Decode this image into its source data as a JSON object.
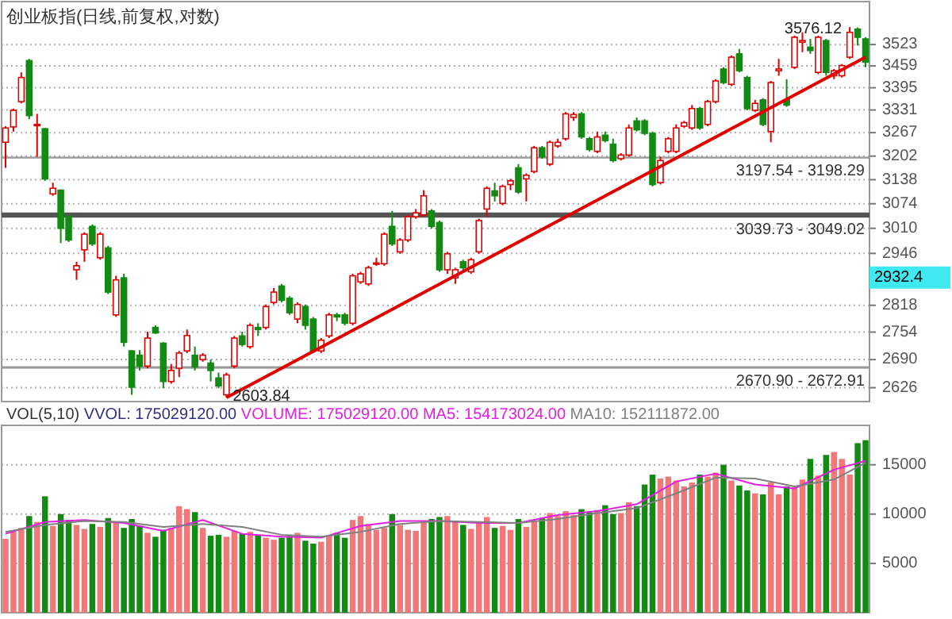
{
  "chart_data": [
    {
      "type": "candlestick",
      "title": "创业板指(日线,前复权,对数)",
      "categories": [
        null,
        null,
        null,
        null,
        null,
        null,
        null,
        null,
        null,
        null,
        null,
        null,
        null,
        null,
        null,
        null,
        null,
        null,
        null,
        null,
        null,
        null,
        null,
        null,
        null,
        null,
        null,
        null,
        null,
        null,
        null,
        null,
        null,
        null,
        null,
        null,
        null,
        null,
        null,
        null,
        null,
        null,
        null,
        null,
        null,
        null,
        null,
        null,
        null,
        null,
        null,
        null,
        null,
        null,
        null,
        null,
        null,
        null,
        null,
        null,
        null,
        null,
        null,
        null,
        null,
        null,
        null,
        null,
        null,
        null,
        null,
        null,
        null,
        null,
        null,
        null,
        null,
        null,
        null,
        null,
        null,
        null,
        null,
        null,
        null,
        null,
        null,
        null,
        null,
        null,
        null,
        null,
        null,
        null,
        null,
        null,
        null,
        null,
        null,
        null,
        null,
        null,
        null,
        null,
        null,
        null,
        null,
        null,
        null,
        null
      ],
      "ohlc": [
        [
          3240,
          3285,
          3170,
          3280
        ],
        [
          3283,
          3335,
          3270,
          3330
        ],
        [
          3355,
          3440,
          3350,
          3425
        ],
        [
          3475,
          3480,
          3305,
          3315
        ],
        [
          3290,
          3320,
          3200,
          3290
        ],
        [
          3278,
          3280,
          3135,
          3140
        ],
        [
          3100,
          3130,
          3095,
          3115
        ],
        [
          3110,
          3112,
          2972,
          3010
        ],
        [
          3040,
          3045,
          2975,
          2980
        ],
        [
          2905,
          2925,
          2880,
          2915
        ],
        [
          2955,
          3000,
          2925,
          2995
        ],
        [
          3015,
          3020,
          2965,
          2970
        ],
        [
          2935,
          3000,
          2930,
          2995
        ],
        [
          2960,
          2965,
          2845,
          2850
        ],
        [
          2795,
          2890,
          2790,
          2880
        ],
        [
          2885,
          2895,
          2720,
          2730
        ],
        [
          2710,
          2712,
          2610,
          2627
        ],
        [
          2700,
          2712,
          2665,
          2675
        ],
        [
          2675,
          2755,
          2670,
          2740
        ],
        [
          2765,
          2770,
          2750,
          2752
        ],
        [
          2728,
          2730,
          2625,
          2640
        ],
        [
          2640,
          2680,
          2635,
          2665
        ],
        [
          2670,
          2710,
          2650,
          2705
        ],
        [
          2710,
          2760,
          2705,
          2746
        ],
        [
          2700,
          2720,
          2665,
          2673
        ],
        [
          2690,
          2705,
          2685,
          2700
        ],
        [
          2682,
          2690,
          2640,
          2665
        ],
        [
          2648,
          2660,
          2625,
          2630
        ],
        [
          2610,
          2660,
          2603.84,
          2655
        ],
        [
          2675,
          2745,
          2670,
          2740
        ],
        [
          2745,
          2755,
          2720,
          2725
        ],
        [
          2720,
          2775,
          2715,
          2770
        ],
        [
          2765,
          2775,
          2745,
          2760
        ],
        [
          2765,
          2820,
          2760,
          2815
        ],
        [
          2825,
          2860,
          2820,
          2850
        ],
        [
          2865,
          2870,
          2825,
          2830
        ],
        [
          2835,
          2840,
          2795,
          2800
        ],
        [
          2785,
          2825,
          2775,
          2820
        ],
        [
          2815,
          2820,
          2760,
          2770
        ],
        [
          2785,
          2790,
          2705,
          2710
        ],
        [
          2710,
          2740,
          2705,
          2735
        ],
        [
          2745,
          2800,
          2740,
          2795
        ],
        [
          2795,
          2800,
          2780,
          2790
        ],
        [
          2795,
          2800,
          2770,
          2775
        ],
        [
          2775,
          2895,
          2770,
          2890
        ],
        [
          2875,
          2900,
          2870,
          2895
        ],
        [
          2870,
          2915,
          2865,
          2910
        ],
        [
          2920,
          2935,
          2915,
          2922
        ],
        [
          2920,
          3000,
          2915,
          2995
        ],
        [
          3015,
          3055,
          2965,
          2970
        ],
        [
          2950,
          2985,
          2945,
          2980
        ],
        [
          2980,
          3045,
          2975,
          3040
        ],
        [
          3040,
          3060,
          3035,
          3050
        ],
        [
          3045,
          3110,
          3040,
          3095
        ],
        [
          3055,
          3060,
          3010,
          3015
        ],
        [
          3025,
          3030,
          2900,
          2905
        ],
        [
          2905,
          2950,
          2895,
          2945
        ],
        [
          2885,
          2910,
          2870,
          2905
        ],
        [
          2925,
          2930,
          2900,
          2910
        ],
        [
          2900,
          2935,
          2895,
          2930
        ],
        [
          2950,
          3035,
          2945,
          3030
        ],
        [
          3060,
          3120,
          3040,
          3115
        ],
        [
          3108,
          3130,
          3080,
          3095
        ],
        [
          3075,
          3125,
          3070,
          3120
        ],
        [
          3125,
          3140,
          3110,
          3135
        ],
        [
          3170,
          3180,
          3100,
          3105
        ],
        [
          3140,
          3155,
          3080,
          3150
        ],
        [
          3160,
          3230,
          3155,
          3225
        ],
        [
          3225,
          3230,
          3195,
          3200
        ],
        [
          3180,
          3245,
          3175,
          3240
        ],
        [
          3230,
          3250,
          3225,
          3240
        ],
        [
          3250,
          3325,
          3245,
          3320
        ],
        [
          3310,
          3325,
          3300,
          3318
        ],
        [
          3320,
          3325,
          3250,
          3255
        ],
        [
          3250,
          3255,
          3215,
          3220
        ],
        [
          3215,
          3270,
          3210,
          3255
        ],
        [
          3260,
          3270,
          3240,
          3245
        ],
        [
          3235,
          3250,
          3185,
          3190
        ],
        [
          3195,
          3210,
          3190,
          3205
        ],
        [
          3205,
          3290,
          3200,
          3280
        ],
        [
          3300,
          3310,
          3270,
          3275
        ],
        [
          3300,
          3305,
          3260,
          3265
        ],
        [
          3265,
          3270,
          3120,
          3125
        ],
        [
          3130,
          3200,
          3125,
          3190
        ],
        [
          3215,
          3255,
          3210,
          3250
        ],
        [
          3215,
          3290,
          3210,
          3280
        ],
        [
          3285,
          3300,
          3280,
          3295
        ],
        [
          3280,
          3345,
          3275,
          3335
        ],
        [
          3335,
          3340,
          3275,
          3280
        ],
        [
          3290,
          3360,
          3285,
          3355
        ],
        [
          3355,
          3420,
          3350,
          3415
        ],
        [
          3450,
          3455,
          3405,
          3410
        ],
        [
          3405,
          3490,
          3400,
          3485
        ],
        [
          3495,
          3510,
          3440,
          3445
        ],
        [
          3425,
          3430,
          3330,
          3335
        ],
        [
          3330,
          3360,
          3325,
          3350
        ],
        [
          3360,
          3365,
          3285,
          3290
        ],
        [
          3270,
          3415,
          3240,
          3410
        ],
        [
          3445,
          3480,
          3430,
          3450
        ],
        [
          3360,
          3420,
          3340,
          3345
        ],
        [
          3455,
          3550,
          3450,
          3545
        ],
        [
          3530,
          3560,
          3500,
          3535
        ],
        [
          3515,
          3540,
          3495,
          3505
        ],
        [
          3440,
          3550,
          3435,
          3545
        ],
        [
          3535,
          3540,
          3430,
          3440
        ],
        [
          3430,
          3450,
          3420,
          3445
        ],
        [
          3430,
          3465,
          3425,
          3460
        ],
        [
          3485,
          3576.12,
          3480,
          3560
        ],
        [
          3570,
          3575,
          3520,
          3545
        ],
        [
          3540,
          3545,
          3455,
          3470
        ]
      ],
      "series": [
        {
          "type": "line",
          "color": "#e00000",
          "values": [
            null,
            null,
            null,
            null,
            null,
            null,
            null,
            null,
            null,
            null,
            null,
            null,
            null,
            null,
            null,
            null,
            null,
            null,
            null,
            null,
            null,
            null,
            null,
            null,
            null,
            null,
            null,
            null,
            2603.84,
            null,
            null,
            null,
            null,
            null,
            null,
            null,
            null,
            null,
            null,
            null,
            null,
            null,
            null,
            null,
            null,
            null,
            null,
            null,
            null,
            null,
            null,
            null,
            null,
            null,
            null,
            null,
            null,
            null,
            null,
            null,
            null,
            null,
            null,
            null,
            null,
            null,
            null,
            null,
            null,
            null,
            null,
            null,
            null,
            null,
            null,
            null,
            null,
            null,
            null,
            null,
            null,
            null,
            null,
            null,
            null,
            null,
            null,
            null,
            null,
            null,
            null,
            null,
            null,
            null,
            null,
            null,
            null,
            null,
            null,
            null,
            null,
            null,
            null,
            null,
            null,
            null,
            null,
            null,
            null,
            3485
          ]
        }
      ],
      "ylim": [
        2595,
        3655
      ],
      "log": "y",
      "yticks": [
        2626,
        2690,
        2754,
        2818,
        2946,
        3010,
        3074,
        3138,
        3202,
        3267,
        3331,
        3395,
        3459,
        3523
      ],
      "grid": "y",
      "bands": [
        {
          "axis": "y",
          "from": 2670.9,
          "to": 2672.91,
          "label": "2670.90 - 2672.91",
          "color": "#999999"
        },
        {
          "axis": "y",
          "from": 3039.73,
          "to": 3049.02,
          "label": "3039.73 - 3049.02",
          "color": "#555555"
        },
        {
          "axis": "y",
          "from": 3197.54,
          "to": 3198.29,
          "label": "3197.54 - 3198.29",
          "color": "#999999"
        }
      ],
      "annotations": [
        "2603.84",
        "3576.12",
        "2932.4"
      ]
    },
    {
      "type": "bar",
      "title": "VOL(5,10)",
      "categories": [
        null,
        null,
        null,
        null,
        null,
        null,
        null,
        null,
        null,
        null,
        null,
        null,
        null,
        null,
        null,
        null,
        null,
        null,
        null,
        null,
        null,
        null,
        null,
        null,
        null,
        null,
        null,
        null,
        null,
        null,
        null,
        null,
        null,
        null,
        null,
        null,
        null,
        null,
        null,
        null,
        null,
        null,
        null,
        null,
        null,
        null,
        null,
        null,
        null,
        null,
        null,
        null,
        null,
        null,
        null,
        null,
        null,
        null,
        null,
        null,
        null,
        null,
        null,
        null,
        null,
        null,
        null,
        null,
        null,
        null,
        null,
        null,
        null,
        null,
        null,
        null,
        null,
        null,
        null,
        null,
        null,
        null,
        null,
        null,
        null,
        null,
        null,
        null,
        null,
        null,
        null,
        null,
        null,
        null,
        null,
        null,
        null,
        null,
        null,
        null,
        null,
        null,
        null,
        null,
        null,
        null,
        null,
        null,
        null,
        null
      ],
      "annotations": [
        "VVOL: 175029120.00",
        "VOLUME: 175029120.00"
      ],
      "legend": "top",
      "series": [
        {
          "type": "bar",
          "colors": [
            "#f07878",
            "#f07878",
            "#f07878",
            "#138a13",
            "#f07878",
            "#138a13",
            "#f07878",
            "#138a13",
            "#138a13",
            "#f07878",
            "#f07878",
            "#138a13",
            "#f07878",
            "#138a13",
            "#f07878",
            "#138a13",
            "#138a13",
            "#138a13",
            "#f07878",
            "#138a13",
            "#138a13",
            "#f07878",
            "#f07878",
            "#f07878",
            "#138a13",
            "#f07878",
            "#138a13",
            "#138a13",
            "#f07878",
            "#f07878",
            "#138a13",
            "#f07878",
            "#138a13",
            "#f07878",
            "#f07878",
            "#138a13",
            "#138a13",
            "#f07878",
            "#138a13",
            "#138a13",
            "#f07878",
            "#f07878",
            "#138a13",
            "#138a13",
            "#f07878",
            "#f07878",
            "#f07878",
            "#f07878",
            "#f07878",
            "#138a13",
            "#f07878",
            "#f07878",
            "#f07878",
            "#f07878",
            "#138a13",
            "#138a13",
            "#f07878",
            "#f07878",
            "#138a13",
            "#f07878",
            "#f07878",
            "#f07878",
            "#138a13",
            "#f07878",
            "#f07878",
            "#138a13",
            "#f07878",
            "#f07878",
            "#138a13",
            "#f07878",
            "#f07878",
            "#f07878",
            "#f07878",
            "#138a13",
            "#138a13",
            "#f07878",
            "#138a13",
            "#138a13",
            "#f07878",
            "#f07878",
            "#138a13",
            "#138a13",
            "#138a13",
            "#f07878",
            "#f07878",
            "#f07878",
            "#f07878",
            "#f07878",
            "#138a13",
            "#f07878",
            "#f07878",
            "#138a13",
            "#f07878",
            "#138a13",
            "#138a13",
            "#f07878",
            "#138a13",
            "#f07878",
            "#f07878",
            "#138a13",
            "#f07878",
            "#f07878",
            "#138a13",
            "#f07878",
            "#138a13",
            "#f07878",
            "#f07878",
            "#f07878",
            "#138a13",
            "#138a13"
          ],
          "values": [
            7500,
            8200,
            8600,
            9800,
            9200,
            11800,
            8800,
            10000,
            9400,
            8900,
            8500,
            9000,
            8700,
            9600,
            9100,
            8600,
            9500,
            8800,
            8100,
            7700,
            8400,
            8600,
            10800,
            10500,
            10200,
            8600,
            7800,
            7900,
            7700,
            8300,
            8000,
            8200,
            7900,
            7600,
            7400,
            7600,
            7800,
            8100,
            7300,
            7000,
            7200,
            7800,
            8100,
            7600,
            9400,
            9800,
            9000,
            8400,
            8600,
            10000,
            8900,
            8400,
            8300,
            9200,
            9500,
            9700,
            9800,
            9200,
            8900,
            8500,
            9100,
            9700,
            8600,
            8800,
            8400,
            9500,
            8700,
            9300,
            9600,
            10100,
            9800,
            10300,
            9900,
            10500,
            10200,
            10400,
            10900,
            10000,
            10100,
            11200,
            10800,
            13000,
            14000,
            13600,
            13800,
            13400,
            12800,
            13200,
            14000,
            13800,
            14200,
            15000,
            13400,
            12900,
            12400,
            12100,
            12000,
            13200,
            12000,
            12800,
            12700,
            13500,
            15600,
            13900,
            16000,
            16300,
            15600,
            14000,
            17200,
            17500
          ]
        },
        {
          "type": "line",
          "name": "MA5: 154173024.00",
          "color": "#e020e0",
          "values": [
            8000,
            null,
            null,
            null,
            null,
            9200,
            null,
            null,
            null,
            null,
            9400,
            null,
            null,
            null,
            null,
            9100,
            null,
            null,
            null,
            null,
            8300,
            null,
            null,
            null,
            null,
            9400,
            null,
            null,
            null,
            null,
            8000,
            null,
            null,
            null,
            null,
            7700,
            null,
            null,
            null,
            null,
            7600,
            null,
            null,
            null,
            null,
            8800,
            null,
            null,
            null,
            null,
            9300,
            null,
            null,
            null,
            null,
            9300,
            null,
            null,
            null,
            null,
            9100,
            null,
            null,
            null,
            null,
            9100,
            null,
            null,
            null,
            null,
            9900,
            null,
            null,
            null,
            null,
            10300,
            null,
            null,
            null,
            null,
            11000,
            null,
            null,
            null,
            null,
            13300,
            null,
            null,
            null,
            null,
            14100,
            null,
            null,
            null,
            null,
            13000,
            null,
            null,
            null,
            null,
            12600,
            null,
            null,
            null,
            null,
            14500,
            null,
            null,
            null,
            15400
          ]
        },
        {
          "type": "line",
          "name": "MA10: 152111872.00",
          "color": "#808080",
          "values": [
            8200,
            null,
            null,
            null,
            null,
            8900,
            null,
            null,
            null,
            null,
            9300,
            null,
            null,
            null,
            null,
            9200,
            null,
            null,
            null,
            null,
            8700,
            null,
            null,
            null,
            null,
            9000,
            null,
            null,
            null,
            null,
            8700,
            null,
            null,
            null,
            null,
            7900,
            null,
            null,
            null,
            null,
            7700,
            null,
            null,
            null,
            null,
            8200,
            null,
            null,
            null,
            null,
            9000,
            null,
            null,
            null,
            null,
            9300,
            null,
            null,
            null,
            null,
            9200,
            null,
            null,
            null,
            null,
            9100,
            null,
            null,
            null,
            null,
            9500,
            null,
            null,
            null,
            null,
            10100,
            null,
            null,
            null,
            null,
            10600,
            null,
            null,
            null,
            null,
            12100,
            null,
            null,
            null,
            null,
            13700,
            null,
            null,
            null,
            null,
            13600,
            null,
            null,
            null,
            null,
            12800,
            null,
            null,
            null,
            null,
            13500,
            null,
            null,
            null,
            15200
          ]
        }
      ],
      "ylim": [
        0,
        19000
      ],
      "yticks": [
        5000,
        10000,
        15000
      ],
      "grid": "y"
    }
  ]
}
